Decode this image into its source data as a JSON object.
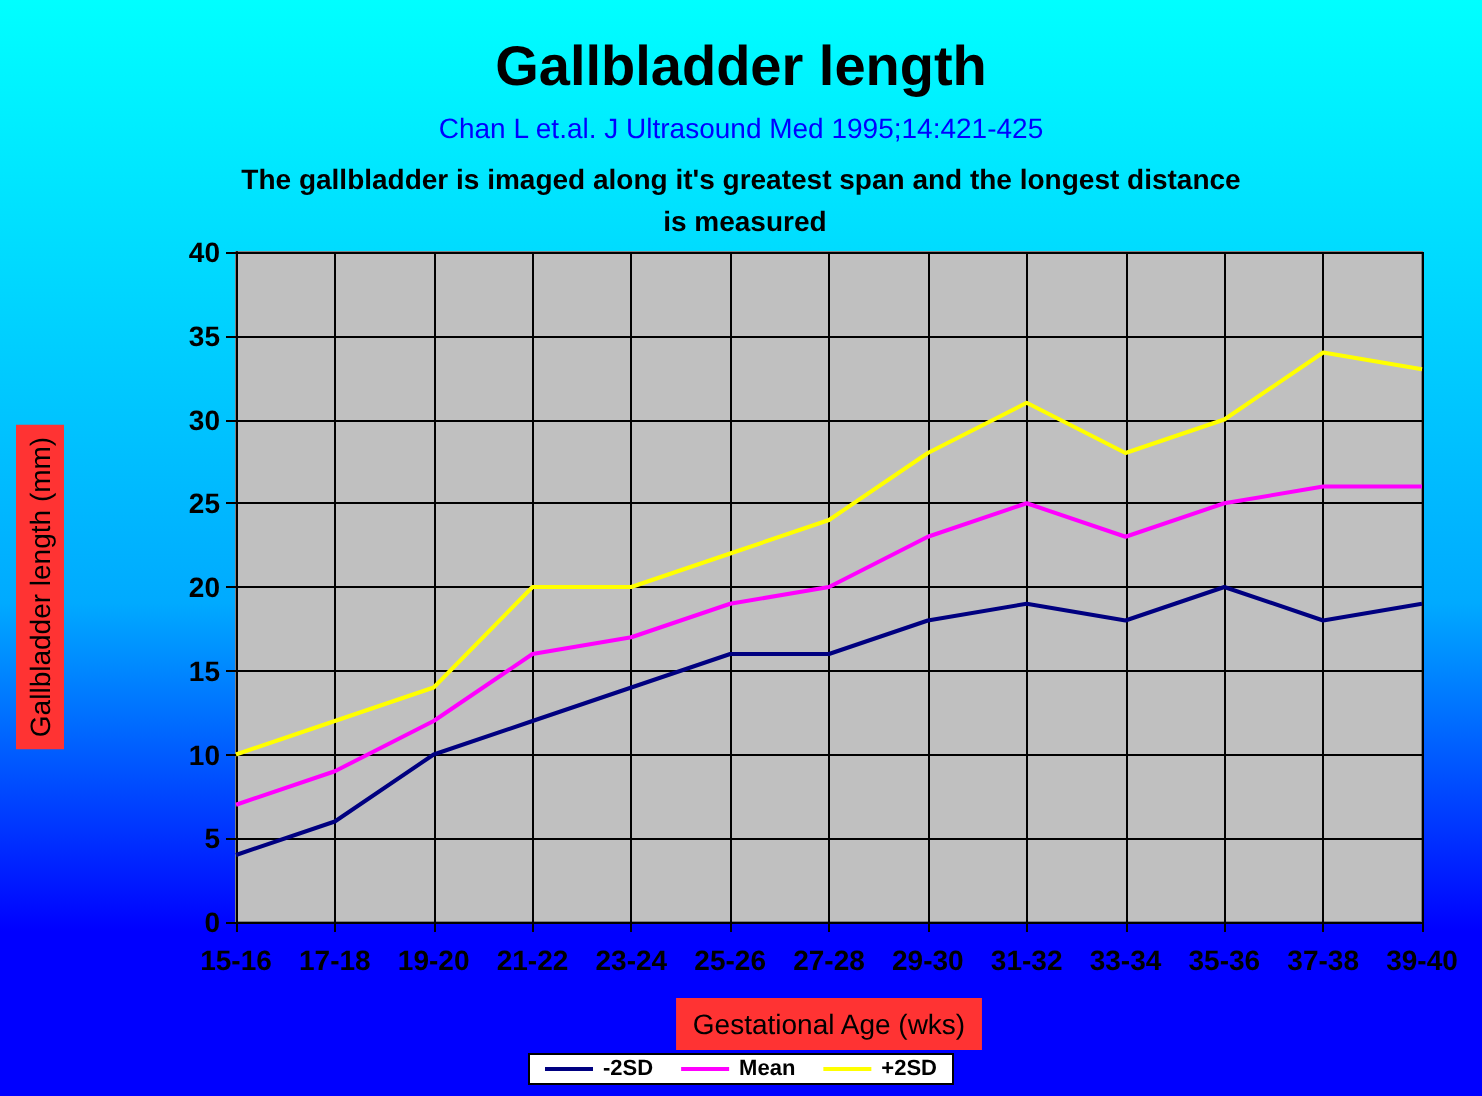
{
  "chart_data": {
    "type": "line",
    "title": "Gallbladder length",
    "subtitle": "Chan L et.al. J Ultrasound Med 1995;14:421-425",
    "annotations": [
      "The gallbladder is imaged along it's greatest span and the longest distance is measured"
    ],
    "xlabel": "Gestational Age (wks)",
    "ylabel": "Gallbladder length (mm)",
    "categories": [
      "15-16",
      "17-18",
      "19-20",
      "21-22",
      "23-24",
      "25-26",
      "27-28",
      "29-30",
      "31-32",
      "33-34",
      "35-36",
      "37-38",
      "39-40"
    ],
    "series": [
      {
        "name": "-2SD",
        "color": "#000080",
        "values": [
          4,
          6,
          10,
          12,
          14,
          16,
          16,
          18,
          19,
          18,
          20,
          18,
          19
        ]
      },
      {
        "name": "Mean",
        "color": "#ff00ff",
        "values": [
          7,
          9,
          12,
          16,
          17,
          19,
          20,
          23,
          25,
          23,
          25,
          26,
          26
        ]
      },
      {
        "name": "+2SD",
        "color": "#ffff00",
        "values": [
          10,
          12,
          14,
          20,
          20,
          22,
          24,
          28,
          31,
          28,
          30,
          34,
          33
        ]
      }
    ],
    "ylim": [
      0,
      40
    ],
    "yticks": [
      0,
      5,
      10,
      15,
      20,
      25,
      30,
      35,
      40
    ],
    "grid": true,
    "legend": "bottom",
    "marker": "none",
    "line_style": "solid"
  }
}
